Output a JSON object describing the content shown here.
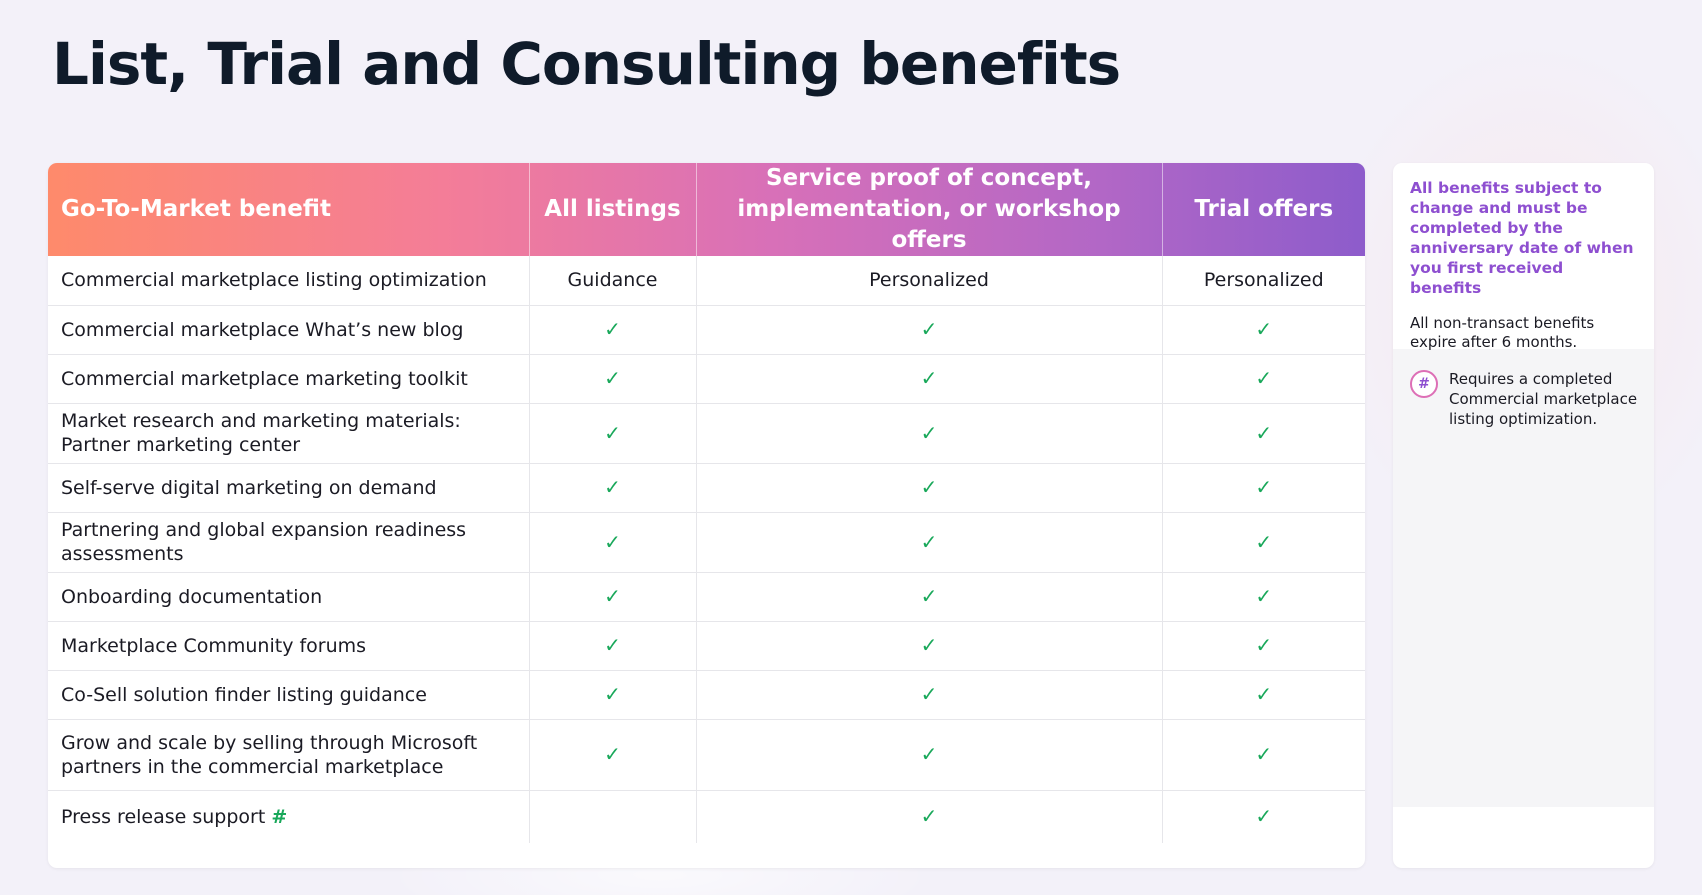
{
  "title": "List, Trial and Consulting benefits",
  "table": {
    "headers": [
      "Go-To-Market benefit",
      "All listings",
      "Service proof of concept, implementation, or workshop offers",
      "Trial offers"
    ],
    "rows": [
      {
        "benefit": "Commercial marketplace listing optimization",
        "suffix": "",
        "all_listings": "Guidance",
        "service_offers": "Personalized",
        "trial_offers": "Personalized"
      },
      {
        "benefit": "Commercial marketplace What’s new blog",
        "suffix": "",
        "all_listings": "✓",
        "service_offers": "✓",
        "trial_offers": "✓"
      },
      {
        "benefit": "Commercial marketplace marketing toolkit",
        "suffix": "",
        "all_listings": "✓",
        "service_offers": "✓",
        "trial_offers": "✓"
      },
      {
        "benefit": "Market research and marketing materials: Partner marketing center",
        "suffix": "",
        "all_listings": "✓",
        "service_offers": "✓",
        "trial_offers": "✓"
      },
      {
        "benefit": "Self-serve digital marketing on demand",
        "suffix": "",
        "all_listings": "✓",
        "service_offers": "✓",
        "trial_offers": "✓"
      },
      {
        "benefit": "Partnering and global expansion readiness assessments",
        "suffix": "",
        "all_listings": "✓",
        "service_offers": "✓",
        "trial_offers": "✓"
      },
      {
        "benefit": "Onboarding documentation",
        "suffix": "",
        "all_listings": "✓",
        "service_offers": "✓",
        "trial_offers": "✓"
      },
      {
        "benefit": "Marketplace Community forums",
        "suffix": "",
        "all_listings": "✓",
        "service_offers": "✓",
        "trial_offers": "✓"
      },
      {
        "benefit": "Co-Sell solution finder listing guidance",
        "suffix": "",
        "all_listings": "✓",
        "service_offers": "✓",
        "trial_offers": "✓"
      },
      {
        "benefit": "Grow and scale by selling through Microsoft partners in the commercial marketplace",
        "suffix": "",
        "all_listings": "✓",
        "service_offers": "✓",
        "trial_offers": "✓"
      },
      {
        "benefit": "Press release support",
        "suffix": "#",
        "all_listings": "",
        "service_offers": "✓",
        "trial_offers": "✓"
      }
    ]
  },
  "side_panel": {
    "note_highlight": "All benefits subject to change and must be completed by the anniversary date of when you first received benefits",
    "note_expiry": "All non-transact benefits expire after 6 months.",
    "footnote_symbol": "#",
    "footnote_text": "Requires a completed Commercial marketplace listing optimization."
  },
  "colors": {
    "header_gradient": [
      "#fe8a6b",
      "#f47d98",
      "#d870b8",
      "#b267c6",
      "#8d5ccb"
    ],
    "check_green": "#19a85a",
    "accent_purple": "#8e4fd0",
    "background": "#f3f1f9"
  },
  "icons": {
    "included": "check-icon",
    "footnote": "hash-badge-icon"
  }
}
